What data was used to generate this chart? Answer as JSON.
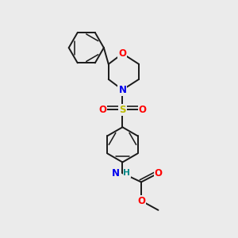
{
  "bg_color": "#ebebeb",
  "bond_color": "#1a1a1a",
  "bond_width": 1.4,
  "atom_colors": {
    "O": "#ff0000",
    "N": "#0000ee",
    "S": "#bbbb00",
    "NH_N": "#0000ee",
    "NH_H": "#008888",
    "C": "#1a1a1a"
  },
  "font_size_atom": 8.5,
  "font_size_methyl": 7.5
}
